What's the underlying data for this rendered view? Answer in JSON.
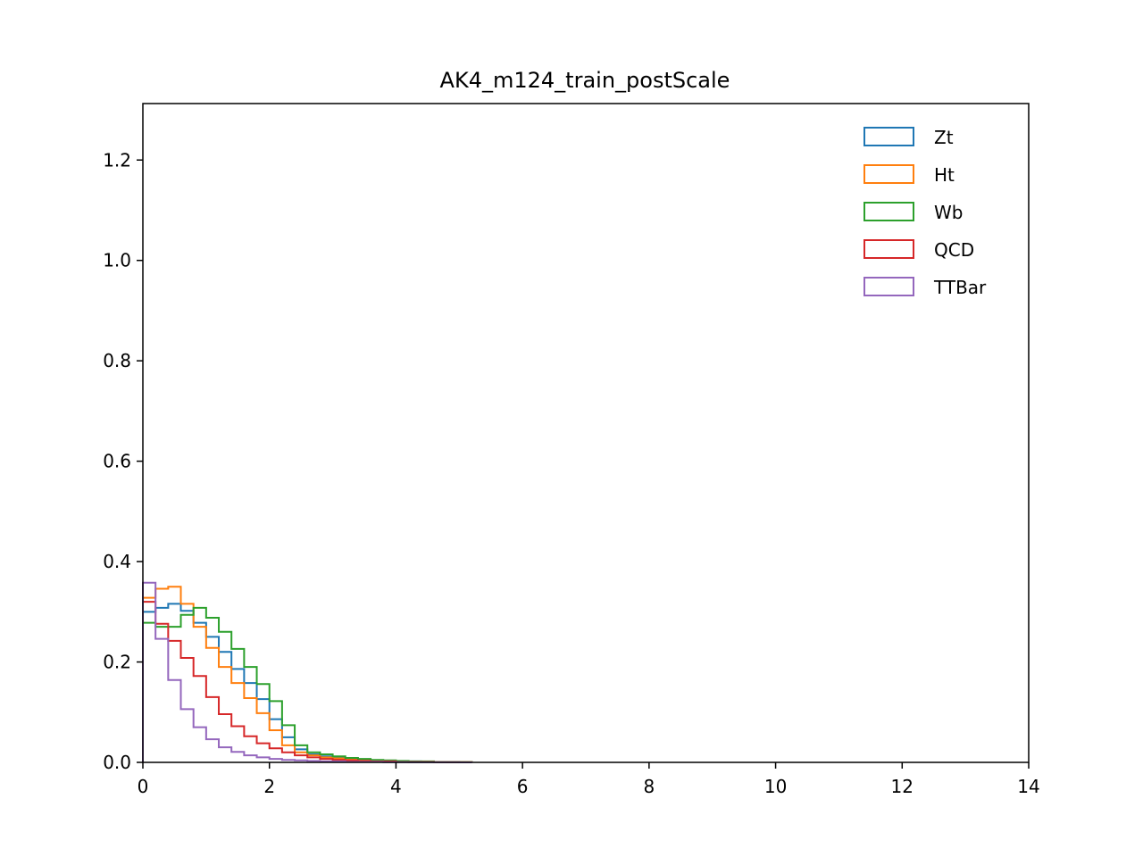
{
  "chart_data": {
    "type": "histogram",
    "title": "AK4_m124_train_postScale",
    "xlabel": "",
    "ylabel": "",
    "xlim": [
      0,
      14
    ],
    "ylim": [
      0,
      1.3125
    ],
    "grid": false,
    "legend_position": "top-right",
    "x_ticks": [
      "0",
      "2",
      "4",
      "6",
      "8",
      "10",
      "12",
      "14"
    ],
    "y_ticks": [
      "0.0",
      "0.2",
      "0.4",
      "0.6",
      "0.8",
      "1.0",
      "1.2"
    ],
    "bin_edges": [
      0,
      0.2,
      0.4,
      0.6,
      0.8,
      1.0,
      1.2,
      1.4,
      1.6,
      1.8,
      2.0,
      2.2,
      2.4,
      2.6,
      2.8,
      3.0,
      3.2,
      3.4,
      3.6,
      3.8,
      4.0,
      4.2,
      4.4,
      4.6,
      4.8,
      5.0,
      5.2
    ],
    "series": [
      {
        "name": "Zt",
        "color": "#1f77b4",
        "values": [
          0.3,
          0.308,
          0.316,
          0.302,
          0.278,
          0.25,
          0.22,
          0.186,
          0.158,
          0.126,
          0.086,
          0.05,
          0.026,
          0.016,
          0.012,
          0.009,
          0.007,
          0.005,
          0.004,
          0.003,
          0.002,
          0.002,
          0.001,
          0.001,
          0.001,
          0.0005
        ]
      },
      {
        "name": "Ht",
        "color": "#ff7f0e",
        "values": [
          0.328,
          0.346,
          0.35,
          0.316,
          0.27,
          0.228,
          0.19,
          0.158,
          0.128,
          0.098,
          0.064,
          0.034,
          0.02,
          0.014,
          0.01,
          0.008,
          0.006,
          0.004,
          0.003,
          0.002,
          0.002,
          0.001,
          0.001,
          0.001,
          0.0005,
          0.0005
        ]
      },
      {
        "name": "Wb",
        "color": "#2ca02c",
        "values": [
          0.278,
          0.27,
          0.27,
          0.294,
          0.308,
          0.288,
          0.26,
          0.226,
          0.19,
          0.156,
          0.122,
          0.074,
          0.034,
          0.02,
          0.016,
          0.012,
          0.009,
          0.007,
          0.005,
          0.004,
          0.003,
          0.002,
          0.002,
          0.001,
          0.001,
          0.0005
        ]
      },
      {
        "name": "QCD",
        "color": "#d62728",
        "values": [
          0.32,
          0.276,
          0.242,
          0.208,
          0.172,
          0.13,
          0.096,
          0.072,
          0.052,
          0.038,
          0.028,
          0.02,
          0.014,
          0.01,
          0.007,
          0.005,
          0.004,
          0.003,
          0.002,
          0.002,
          0.001,
          0.001,
          0.001,
          0.0005,
          0.0005,
          0.0003
        ]
      },
      {
        "name": "TTBar",
        "color": "#9467bd",
        "values": [
          0.358,
          0.246,
          0.164,
          0.106,
          0.07,
          0.046,
          0.03,
          0.021,
          0.014,
          0.01,
          0.007,
          0.005,
          0.004,
          0.003,
          0.002,
          0.002,
          0.001,
          0.001,
          0.001,
          0.0005,
          0.0005,
          0.0003,
          0.0003,
          0.0002,
          0.0002,
          0.0001
        ]
      }
    ]
  }
}
